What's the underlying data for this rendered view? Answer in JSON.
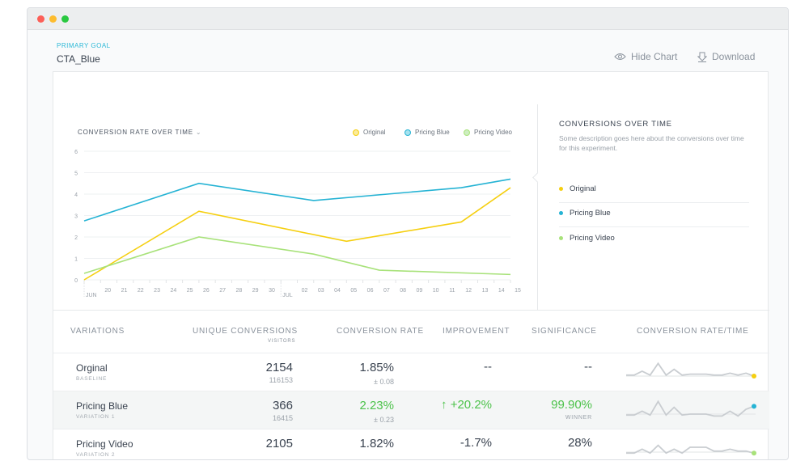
{
  "window": {
    "controls": [
      "close",
      "minimize",
      "maximize"
    ]
  },
  "header": {
    "goal_label": "PRIMARY GOAL",
    "goal_name": "CTA_Blue",
    "hide_chart": "Hide Chart",
    "download": "Download"
  },
  "colors": {
    "original": "#f5cf10",
    "pricing_blue": "#25b3d4",
    "pricing_video": "#a8e27a",
    "accent": "#2bb8d6",
    "positive": "#4cc24a"
  },
  "chart_data": {
    "type": "line",
    "title": "CONVERSION RATE OVER TIME",
    "ylim": [
      0,
      6
    ],
    "yticks": [
      "0",
      "1",
      "2",
      "3",
      "4",
      "5",
      "6"
    ],
    "xticks": [
      "JUN",
      "20",
      "21",
      "22",
      "23",
      "24",
      "25",
      "26",
      "27",
      "28",
      "29",
      "30",
      "JUL",
      "02",
      "03",
      "04",
      "05",
      "06",
      "07",
      "08",
      "09",
      "10",
      "11",
      "12",
      "13",
      "14",
      "15"
    ],
    "grid": true,
    "legend": "top-right",
    "series": [
      {
        "name": "Original",
        "color": "#f5cf10",
        "points": [
          [
            "Jun 19",
            0
          ],
          [
            "Jun 26",
            3.2
          ],
          [
            "Jul 05",
            1.8
          ],
          [
            "Jul 12",
            2.7
          ],
          [
            "Jul 15",
            4.3
          ]
        ]
      },
      {
        "name": "Pricing Blue",
        "color": "#25b3d4",
        "points": [
          [
            "Jun 19",
            2.75
          ],
          [
            "Jun 26",
            4.5
          ],
          [
            "Jul 03",
            3.7
          ],
          [
            "Jul 12",
            4.3
          ],
          [
            "Jul 15",
            4.7
          ]
        ]
      },
      {
        "name": "Pricing Video",
        "color": "#a8e27a",
        "points": [
          [
            "Jun 19",
            0.3
          ],
          [
            "Jun 26",
            2.0
          ],
          [
            "Jul 03",
            1.2
          ],
          [
            "Jul 07",
            0.45
          ],
          [
            "Jul 15",
            0.25
          ]
        ]
      }
    ]
  },
  "side": {
    "title": "CONVERSIONS OVER TIME",
    "description": "Some description goes here about the conversions over time for this experiment.",
    "items": [
      "Original",
      "Pricing Blue",
      "Pricing Video"
    ]
  },
  "table": {
    "headers": {
      "variations": "VARIATIONS",
      "unique": "UNIQUE CONVERSIONS",
      "visitors": "VISITORS",
      "rate": "CONVERSION RATE",
      "improvement": "IMPROVEMENT",
      "significance": "SIGNIFICANCE",
      "rate_time": "CONVERSION RATE/TIME"
    },
    "rows": [
      {
        "name": "Orginal",
        "sub": "BASELINE",
        "conversions": "2154",
        "visitors": "116153",
        "rate": "1.85%",
        "margin": "± 0.08",
        "improvement": "--",
        "significance": "--",
        "sig_sub": "",
        "spark": [
          3,
          3,
          5,
          3,
          9,
          3,
          6,
          3,
          3.5,
          3.5,
          3.5,
          3,
          3,
          4,
          3,
          4,
          2.5
        ],
        "dot": "#f5cf10"
      },
      {
        "name": "Pricing Blue",
        "sub": "VARIATION 1",
        "conversions": "366",
        "visitors": "16415",
        "rate": "2.23%",
        "margin": "± 0.23",
        "improvement": "+20.2%",
        "significance": "99.90%",
        "sig_sub": "WINNER",
        "spark": [
          2,
          2,
          4,
          2,
          9,
          2,
          6,
          2,
          2.5,
          2.5,
          2.5,
          1.5,
          1.5,
          4,
          1.5,
          5,
          6.5
        ],
        "dot": "#25b3d4"
      },
      {
        "name": "Pricing Video",
        "sub": "VARIATION 2",
        "conversions": "2105",
        "visitors": "",
        "rate": "1.82%",
        "margin": "",
        "improvement": "-1.7%",
        "significance": "28%",
        "sig_sub": "",
        "spark": [
          2,
          2,
          4,
          2,
          6,
          2,
          4,
          2,
          5,
          5,
          5,
          3,
          3,
          4,
          3,
          3,
          2
        ],
        "dot": "#a8e27a"
      }
    ]
  }
}
